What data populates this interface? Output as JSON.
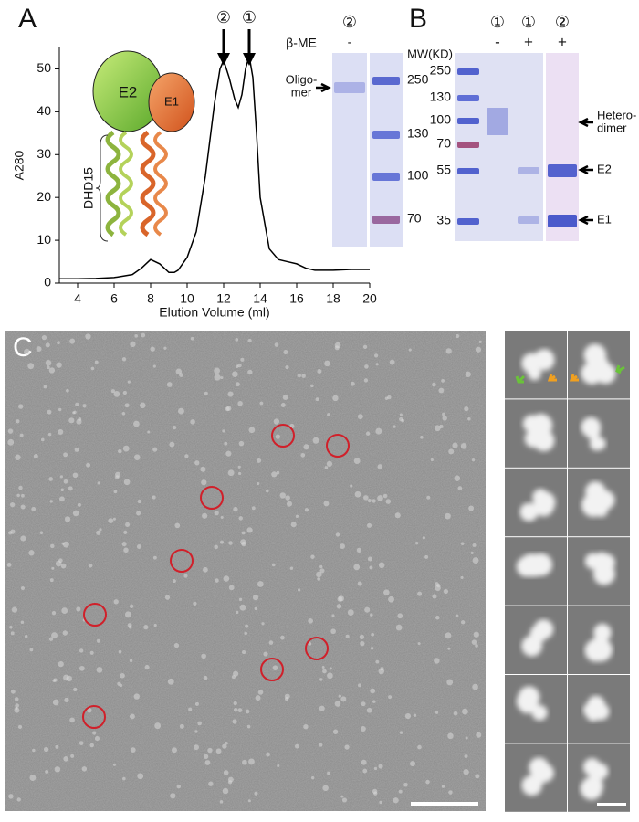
{
  "panels": [
    "A",
    "B",
    "C"
  ],
  "chart_data": {
    "type": "line",
    "xlabel": "Elution Volume (ml)",
    "ylabel": "A280",
    "x": [
      3,
      4,
      5,
      6,
      7,
      7.5,
      8,
      8.5,
      9,
      9.3,
      9.5,
      10,
      10.5,
      11,
      11.5,
      11.8,
      12,
      12.3,
      12.6,
      12.8,
      13,
      13.2,
      13.4,
      13.6,
      13.8,
      14,
      14.5,
      15,
      15.5,
      16,
      16.5,
      17,
      18,
      19,
      20
    ],
    "series": [
      {
        "color": "#000000",
        "values": [
          1,
          1,
          1.1,
          1.3,
          2,
          3.5,
          5.5,
          4.5,
          2.5,
          2.5,
          3,
          6,
          12,
          25,
          42,
          50,
          52,
          48,
          43,
          41,
          44,
          50,
          53,
          48,
          35,
          20,
          8,
          5.5,
          5,
          4.5,
          3.5,
          3,
          3,
          3.2,
          3.2
        ]
      }
    ],
    "xlim": [
      3,
      20
    ],
    "ylim": [
      0,
      55
    ],
    "xticks": [
      4,
      6,
      8,
      10,
      12,
      14,
      16,
      18,
      20
    ],
    "yticks": [
      0,
      10,
      20,
      30,
      40,
      50
    ],
    "annotations": [
      {
        "text": "②",
        "x": 12
      },
      {
        "text": "①",
        "x": 13.4
      }
    ],
    "inset": {
      "subunits": [
        "E2",
        "E1"
      ],
      "domain": "DHD15"
    }
  },
  "gel": {
    "reagent": "β-ME",
    "left": {
      "lane": "②",
      "sign": "-",
      "band": [
        "Oligo-",
        "mer"
      ],
      "markers": [
        250,
        130,
        100,
        70
      ]
    },
    "right": {
      "mw_label": "MW(KD)",
      "markers": [
        250,
        130,
        100,
        70,
        55,
        35
      ],
      "lanes": [
        {
          "id": "①",
          "sign": "-"
        },
        {
          "id": "①",
          "sign": "+"
        },
        {
          "id": "②",
          "sign": "+"
        }
      ],
      "bands": [
        [
          "Hetero-",
          "dimer"
        ],
        "E2",
        "E1"
      ]
    }
  }
}
